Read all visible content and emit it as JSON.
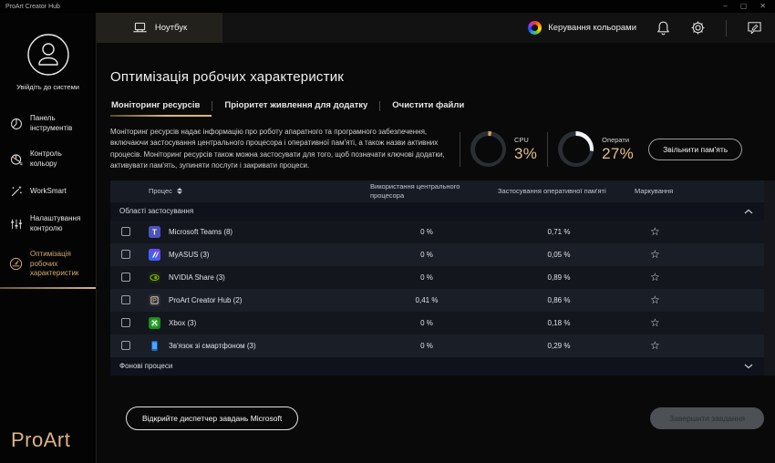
{
  "window": {
    "title": "ProArt Creator Hub",
    "controls": {
      "minimize": "–",
      "maximize": "▢",
      "close": "✕"
    }
  },
  "header": {
    "device_tab": "Ноутбук",
    "device_tab_icon": "laptop-icon",
    "color_management": "Керування кольорами",
    "icons": [
      "color-wheel-icon",
      "bell-icon",
      "gear-icon",
      "feedback-icon"
    ]
  },
  "sidebar": {
    "signin": "Увійдіть до системи",
    "avatar_icon": "user-avatar-icon",
    "items": [
      {
        "id": "dashboard",
        "label": "Панель інструментів",
        "icon": "dashboard-icon",
        "active": false
      },
      {
        "id": "color-control",
        "label": "Контроль кольору",
        "icon": "color-control-icon",
        "active": false
      },
      {
        "id": "worksmart",
        "label": "WorkSmart",
        "icon": "wand-icon",
        "active": false
      },
      {
        "id": "control-settings",
        "label": "Налаштування контролю",
        "icon": "sliders-icon",
        "active": false
      },
      {
        "id": "performance-optimization",
        "label": "Оптимізація робочих характеристик",
        "icon": "speedometer-icon",
        "active": true
      }
    ],
    "logo": "ProArt"
  },
  "page": {
    "title": "Оптимізація робочих характеристик",
    "tabs": [
      {
        "id": "resource-monitoring",
        "label": "Моніторинг ресурсів",
        "active": true
      },
      {
        "id": "app-power-priority",
        "label": "Пріоритет живлення для додатку",
        "active": false
      },
      {
        "id": "clean-files",
        "label": "Очистити файли",
        "active": false
      }
    ],
    "description": "Моніторинг ресурсів надає інформацію про роботу апаратного та програмного забезпечення, включаючи застосування центрального процесора і оперативної пам'яті, а також назви активних процесів. Моніторинг ресурсів також можна застосувати для того, щоб позначати ключові додатки, активувати пам'ять, зупиняти послуги і закривати процеси."
  },
  "gauges": {
    "cpu": {
      "label": "CPU",
      "value": "3%",
      "percent": 3,
      "arc_color": "#d9a85c"
    },
    "ram": {
      "label": "Операти",
      "value": "27%",
      "percent": 27,
      "arc_color": "#f2f3f5"
    },
    "track_color": "#2b2e33",
    "free_memory_button": "Звільнити пам'ять"
  },
  "table": {
    "columns": [
      "Процес",
      "Використання центрального процесора",
      "Застосування оперативної пам'яті",
      "Маркування"
    ],
    "sections": [
      {
        "id": "applications",
        "label": "Області застосування",
        "expanded": true
      },
      {
        "id": "background-processes",
        "label": "Фонові процеси",
        "expanded": false
      }
    ],
    "rows": [
      {
        "id": "microsoft-teams",
        "name": "Microsoft Teams (8)",
        "cpu": "0 %",
        "ram": "0,71 %",
        "icon": "teams-icon"
      },
      {
        "id": "myasus",
        "name": "MyASUS (3)",
        "cpu": "0 %",
        "ram": "0,05 %",
        "icon": "myasus-icon"
      },
      {
        "id": "nvidia-share",
        "name": "NVIDIA Share (3)",
        "cpu": "0 %",
        "ram": "0,89 %",
        "icon": "nvidia-icon"
      },
      {
        "id": "proart-creator-hub",
        "name": "ProArt Creator Hub (2)",
        "cpu": "0,41 %",
        "ram": "0,86 %",
        "icon": "proart-icon"
      },
      {
        "id": "xbox",
        "name": "Xbox (3)",
        "cpu": "0 %",
        "ram": "0,18 %",
        "icon": "xbox-icon"
      },
      {
        "id": "phone-link",
        "name": "Зв'язок зі смартфоном (3)",
        "cpu": "0 %",
        "ram": "0,29 %",
        "icon": "phone-icon"
      }
    ],
    "star_icon": "favorite-star-icon"
  },
  "footer": {
    "open_task_manager": "Відкрийте диспетчер завдань Microsoft",
    "end_task": "Завершити завдання"
  },
  "colors": {
    "accent_gold": "#d9b57e",
    "row_odd": "#13161d",
    "row_even": "#1a1e27",
    "header_row": "#171b23"
  }
}
